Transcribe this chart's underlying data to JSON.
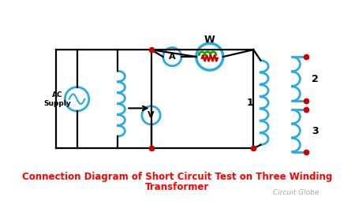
{
  "title_line1": "Connection Diagram of Short Circuit Test on Three Winding",
  "title_line2": "Transformer",
  "title_color": "#ff0000",
  "title_fontsize": 8.5,
  "bg_color": "#ffffff",
  "wire_color": "#000000",
  "cyan_color": "#29abe2",
  "red_dot_color": "#cc0000",
  "green_color": "#00aa00",
  "red_color": "#cc0000",
  "watermark": "Circuit Globe",
  "watermark_color": "#aaaaaa",
  "watermark_fontsize": 6.5,
  "lw_wire": 1.6,
  "lw_component": 2.0
}
